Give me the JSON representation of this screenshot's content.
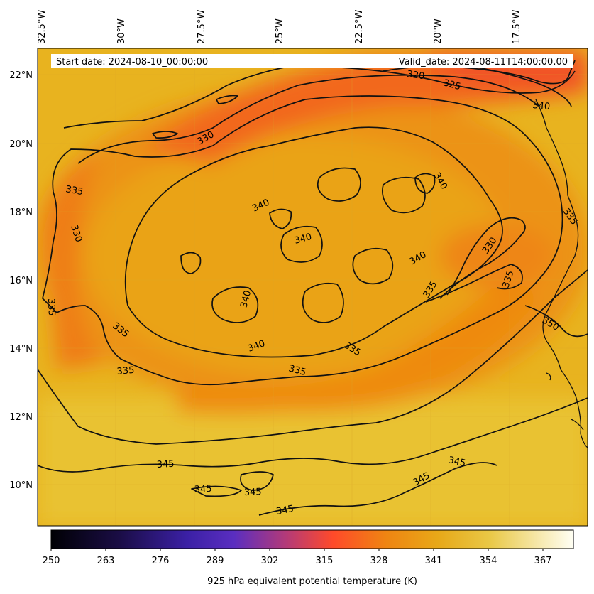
{
  "header": {
    "start_text": "Start date: 2024-08-10_00:00:00",
    "valid_text": "Valid_date: 2024-08-11T14:00:00.00"
  },
  "axes": {
    "lon_labels": [
      "32.5°W",
      "30°W",
      "27.5°W",
      "25°W",
      "22.5°W",
      "20°W",
      "17.5°W"
    ],
    "lat_labels": [
      "22°N",
      "20°N",
      "18°N",
      "16°N",
      "14°N",
      "12°N",
      "10°N"
    ]
  },
  "contour_labels": [
    {
      "id": "c320",
      "text": "320"
    },
    {
      "id": "c325",
      "text": "325"
    },
    {
      "id": "c330a",
      "text": "330"
    },
    {
      "id": "c330b",
      "text": "330"
    },
    {
      "id": "c330c",
      "text": "330"
    },
    {
      "id": "c335a",
      "text": "335"
    },
    {
      "id": "c335b",
      "text": "335"
    },
    {
      "id": "c335c",
      "text": "335"
    },
    {
      "id": "c335d",
      "text": "335"
    },
    {
      "id": "c335e",
      "text": "335"
    },
    {
      "id": "c335f",
      "text": "335"
    },
    {
      "id": "c335g",
      "text": "335"
    },
    {
      "id": "c335h",
      "text": "335"
    },
    {
      "id": "c335i",
      "text": "335"
    },
    {
      "id": "c340a",
      "text": "340"
    },
    {
      "id": "c340b",
      "text": "340"
    },
    {
      "id": "c340c",
      "text": "340"
    },
    {
      "id": "c340d",
      "text": "340"
    },
    {
      "id": "c340e",
      "text": "340"
    },
    {
      "id": "c340f",
      "text": "340"
    },
    {
      "id": "c340g",
      "text": "340"
    },
    {
      "id": "c345a",
      "text": "345"
    },
    {
      "id": "c345b",
      "text": "345"
    },
    {
      "id": "c345c",
      "text": "345"
    },
    {
      "id": "c345d",
      "text": "345"
    },
    {
      "id": "c345e",
      "text": "345"
    },
    {
      "id": "c345f",
      "text": "345"
    },
    {
      "id": "c350",
      "text": "350"
    }
  ],
  "colorbar": {
    "title": "925 hPa equivalent potential temperature (K)",
    "ticks": [
      "250",
      "263",
      "276",
      "289",
      "302",
      "315",
      "328",
      "341",
      "354",
      "367"
    ],
    "colors": [
      "#000004",
      "#2a1060",
      "#4a28b8",
      "#7a2fb0",
      "#c03a6a",
      "#ff4a2a",
      "#f07a10",
      "#e8a010",
      "#e8c030",
      "#f2e59a",
      "#fffff0"
    ]
  },
  "colors": {
    "field_cold": "#f15a22",
    "field_mid": "#ec8f12",
    "field_warm": "#e8b61f",
    "field_hot": "#e9c230",
    "contour": "#111111"
  }
}
